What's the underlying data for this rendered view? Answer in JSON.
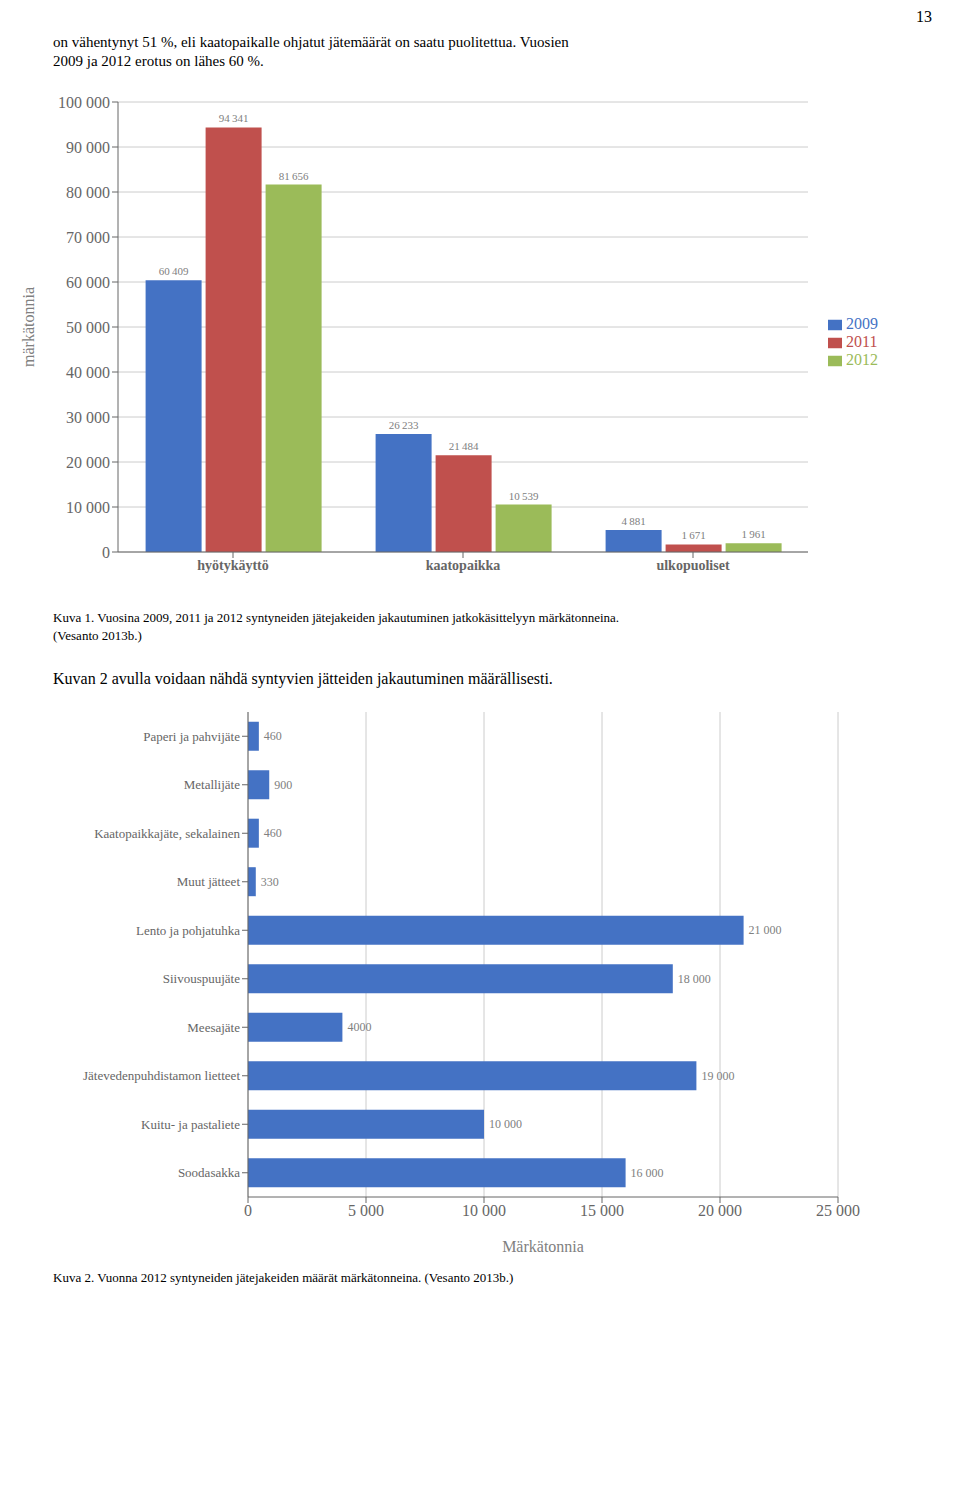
{
  "chart_data": [
    {
      "type": "bar",
      "categories": [
        "hyötykäyttö",
        "kaatopaikka",
        "ulkopuoliset"
      ],
      "series": [
        {
          "name": "2009",
          "color": "#4472C4",
          "values": [
            60409,
            26233,
            4881
          ],
          "value_labels": [
            "60 409",
            "26 233",
            "4 881"
          ]
        },
        {
          "name": "2011",
          "color": "#C0504D",
          "values": [
            94341,
            21484,
            1671
          ],
          "value_labels": [
            "94 341",
            "21 484",
            "1 671"
          ]
        },
        {
          "name": "2012",
          "color": "#9BBB59",
          "values": [
            81656,
            10539,
            1961
          ],
          "value_labels": [
            "81 656",
            "10 539",
            "1 961"
          ]
        }
      ],
      "ylabel": "märkätonnia",
      "ylim": [
        0,
        100000
      ],
      "yticks": [
        0,
        {
          "value": 10000,
          "label": "10 000"
        },
        {
          "value": 20000,
          "label": "20 000"
        },
        {
          "value": 30000,
          "label": "30 000"
        },
        {
          "value": 40000,
          "label": "40 000"
        },
        {
          "value": 50000,
          "label": "50 000"
        },
        {
          "value": 60000,
          "label": "60 000"
        },
        {
          "value": 70000,
          "label": "70 000"
        },
        {
          "value": 80000,
          "label": "80 000"
        },
        {
          "value": 90000,
          "label": "90 000"
        },
        {
          "value": 100000,
          "label": "100 000"
        }
      ],
      "grid": true,
      "legend": "right",
      "data_labels": true,
      "annotations": [
        "13",
        "on vähentynyt 51 %, eli kaatopaikalle ohjatut jätemäärät on saatu puolitettua. Vuosien",
        "2009 ja 2012 erotus on lähes 60 %.",
        "Kuva 1. Vuosina 2009, 2011 ja 2012 syntyneiden jätejakeiden jakautuminen jatkokäsittelyyn märkätonneina.",
        "(Vesanto 2013b.)"
      ]
    },
    {
      "type": "bar",
      "orientation": "horizontal",
      "categories": [
        "Paperi ja pahvijäte",
        "Metallijäte",
        "Kaatopaikkajäte, sekalainen",
        "Muut jätteet",
        "Lento ja pohjatuhka",
        "Siivouspuujäte",
        "Meesajäte",
        "Jätevedenpuhdistamon lietteet",
        "Kuitu- ja pastaliete",
        "Soodasakka"
      ],
      "values": [
        460,
        900,
        460,
        330,
        21000,
        18000,
        4000,
        19000,
        10000,
        16000
      ],
      "value_labels": [
        "460",
        "900",
        "460",
        "330",
        "21 000",
        "18 000",
        "4000",
        "19 000",
        "10 000",
        "16 000"
      ],
      "color": "#4472C4",
      "xlabel": "Märkätonnia",
      "xlim": [
        0,
        25000
      ],
      "xticks": [
        0,
        {
          "value": 5000,
          "label": "5 000"
        },
        {
          "value": 10000,
          "label": "10 000"
        },
        {
          "value": 15000,
          "label": "15 000"
        },
        {
          "value": 20000,
          "label": "20 000"
        },
        {
          "value": 25000,
          "label": "25 000"
        }
      ],
      "grid": true,
      "data_labels": true,
      "annotations": [
        "Kuvan 2 avulla voidaan nähdä syntyvien jätteiden jakautuminen määrällisesti.",
        "Kuva 2. Vuonna 2012 syntyneiden jätejakeiden määrät märkätonneina. (Vesanto 2013b.)"
      ]
    }
  ]
}
